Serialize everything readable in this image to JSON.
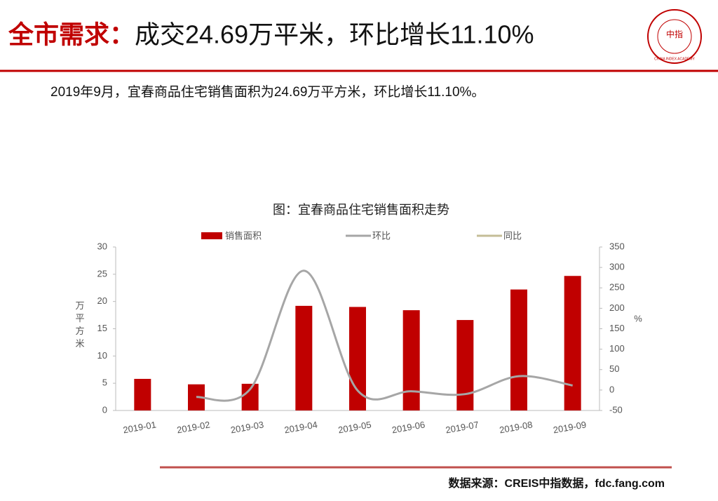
{
  "header": {
    "title_prefix": "全市需求：",
    "title_rest": "成交24.69万平米，环比增长11.10%",
    "logo_text": "中指",
    "logo_subtext": "CHINA INDEX ACADEMY"
  },
  "summary": "2019年9月，宜春商品住宅销售面积为24.69万平方米，环比增长11.10%。",
  "source": "数据来源：CREIS中指数据，fdc.fang.com",
  "chart_data": {
    "type": "bar",
    "title": "图：宜春商品住宅销售面积走势",
    "y_label": "万平方米",
    "y2_label": "%",
    "categories": [
      "2019-01",
      "2019-02",
      "2019-03",
      "2019-04",
      "2019-05",
      "2019-06",
      "2019-07",
      "2019-08",
      "2019-09"
    ],
    "series": [
      {
        "name": "销售面积",
        "color": "#c00000",
        "type": "bar",
        "values": [
          5.8,
          4.8,
          4.9,
          19.2,
          19.0,
          18.4,
          16.6,
          22.2,
          24.69
        ]
      },
      {
        "name": "环比",
        "color": "#a6a6a6",
        "type": "line",
        "axis": "y2",
        "values": [
          null,
          -17,
          2,
          292,
          -1,
          -3,
          -10,
          34,
          11.1
        ]
      },
      {
        "name": "同比",
        "color": "#c4bd97",
        "type": "line",
        "axis": "y2",
        "values": [
          null,
          null,
          null,
          null,
          null,
          null,
          null,
          null,
          null
        ]
      }
    ],
    "ylim": [
      0,
      30
    ],
    "yticks": [
      0,
      5,
      10,
      15,
      20,
      25,
      30
    ],
    "y2lim": [
      -50,
      350
    ],
    "y2ticks": [
      -50,
      0,
      50,
      100,
      150,
      200,
      250,
      300,
      350
    ]
  }
}
